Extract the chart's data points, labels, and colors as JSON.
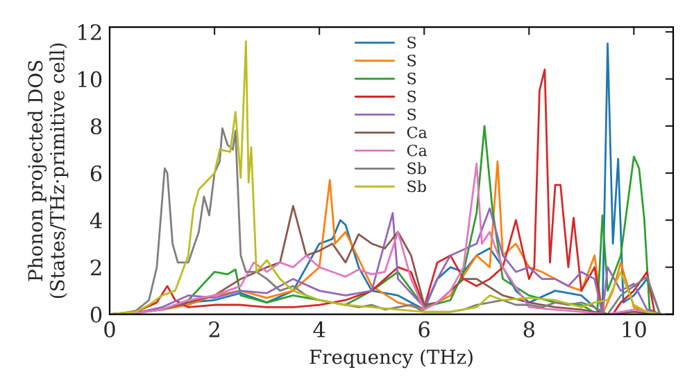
{
  "chart_data": {
    "type": "line",
    "xlabel": "Frequency (THz)",
    "ylabel": "Phonon projected DOS\n(States/THz·primitive cell)",
    "xlim": [
      0,
      10.75
    ],
    "ylim": [
      0,
      12.2
    ],
    "xticks": [
      0,
      2,
      4,
      6,
      8,
      10
    ],
    "yticks": [
      0,
      2,
      4,
      6,
      8,
      10,
      12
    ],
    "grid": false,
    "legend": "top",
    "marker": "none",
    "line_style": "solid",
    "series": [
      {
        "name": "S",
        "color": "#1f77b4",
        "x": [
          1.0,
          1.5,
          2.0,
          2.5,
          3.0,
          3.5,
          4.0,
          4.25,
          4.4,
          4.5,
          4.75,
          5.0,
          5.5,
          6.0,
          6.25,
          6.5,
          6.75,
          7.0,
          7.25,
          7.5,
          7.75,
          8.0,
          8.5,
          9.0,
          9.25,
          9.4,
          9.5,
          9.6,
          9.7,
          9.8,
          10.0,
          10.25,
          10.5
        ],
        "values": [
          0.2,
          0.5,
          0.6,
          0.9,
          0.5,
          1.0,
          3.0,
          3.2,
          4.0,
          3.8,
          2.0,
          1.0,
          0.8,
          0.2,
          1.5,
          2.0,
          1.8,
          2.5,
          2.8,
          2.0,
          1.0,
          0.5,
          1.0,
          0.8,
          0.3,
          0.0,
          11.5,
          3.0,
          6.6,
          0.5,
          0.8,
          1.5,
          0
        ]
      },
      {
        "name": "S",
        "color": "#ff7f0e",
        "x": [
          0,
          1.0,
          1.5,
          2.0,
          2.5,
          3.0,
          3.5,
          4.0,
          4.2,
          4.3,
          4.5,
          5.0,
          5.5,
          6.0,
          6.5,
          7.0,
          7.25,
          7.4,
          7.5,
          7.75,
          8.0,
          8.25,
          8.5,
          8.75,
          9.0,
          9.25,
          9.4,
          9.6,
          9.75,
          10.0,
          10.25,
          10.5
        ],
        "values": [
          0,
          0.2,
          0.4,
          0.8,
          1.0,
          0.7,
          1.0,
          2.0,
          5.7,
          3.0,
          3.5,
          1.2,
          0.5,
          0.2,
          0.8,
          2.5,
          2.0,
          6.5,
          2.5,
          3.0,
          2.0,
          1.8,
          1.5,
          1.2,
          1.0,
          2.5,
          0.0,
          1.0,
          2.2,
          0.3,
          0.1,
          0
        ]
      },
      {
        "name": "S",
        "color": "#2ca02c",
        "x": [
          1.0,
          1.5,
          1.75,
          2.0,
          2.25,
          2.4,
          2.5,
          3.0,
          3.5,
          4.0,
          4.5,
          5.0,
          5.5,
          6.0,
          6.5,
          6.75,
          7.0,
          7.15,
          7.3,
          7.5,
          8.0,
          8.5,
          9.0,
          9.3,
          9.4,
          9.5,
          9.75,
          10.0,
          10.1,
          10.2,
          10.3,
          10.5
        ],
        "values": [
          0.2,
          0.6,
          1.2,
          1.8,
          1.7,
          1.9,
          0.8,
          0.5,
          0.8,
          0.6,
          0.4,
          1.0,
          1.8,
          0.3,
          0.6,
          1.8,
          4.3,
          8.0,
          4.5,
          1.5,
          0.8,
          0.5,
          0.4,
          0.0,
          4.2,
          1.0,
          2.5,
          6.7,
          6.2,
          4.0,
          0.2,
          0
        ]
      },
      {
        "name": "S",
        "color": "#d62728",
        "x": [
          0,
          0.5,
          0.9,
          1.1,
          1.25,
          1.5,
          2.0,
          2.5,
          3.0,
          3.5,
          4.0,
          4.5,
          5.0,
          5.25,
          5.5,
          5.75,
          6.0,
          6.25,
          6.5,
          6.75,
          7.0,
          7.25,
          7.5,
          7.75,
          8.0,
          8.1,
          8.2,
          8.3,
          8.4,
          8.5,
          8.6,
          8.75,
          8.85,
          9.0,
          9.25,
          9.4,
          9.6,
          9.75,
          10.0,
          10.25,
          10.4
        ],
        "values": [
          0,
          0.1,
          0.5,
          1.2,
          0.6,
          0.3,
          0.4,
          0.4,
          0.3,
          0.3,
          0.4,
          0.6,
          1.0,
          1.5,
          2.0,
          1.8,
          0.3,
          2.2,
          2.5,
          1.5,
          1.2,
          1.5,
          2.0,
          4.0,
          1.5,
          2.0,
          9.5,
          10.4,
          2.2,
          5.5,
          5.5,
          2.0,
          4.1,
          1.0,
          2.0,
          0.0,
          0.0,
          0.5,
          1.0,
          1.8,
          0
        ]
      },
      {
        "name": "S",
        "color": "#9467bd",
        "x": [
          0,
          0.5,
          1.0,
          1.5,
          2.0,
          2.5,
          3.0,
          3.5,
          4.0,
          4.5,
          5.0,
          5.4,
          5.5,
          6.0,
          6.25,
          6.5,
          7.0,
          7.25,
          7.5,
          7.75,
          8.0,
          8.25,
          8.5,
          8.75,
          9.0,
          9.25,
          9.4,
          9.5,
          9.75,
          10.0,
          10.25,
          10.5
        ],
        "values": [
          0,
          0.05,
          0.3,
          0.8,
          0.7,
          1.0,
          0.9,
          1.5,
          1.0,
          0.8,
          1.0,
          4.3,
          1.5,
          0.3,
          1.5,
          2.5,
          3.0,
          4.5,
          2.5,
          1.8,
          2.0,
          1.5,
          1.5,
          1.2,
          1.8,
          1.5,
          0.0,
          2.0,
          1.0,
          1.3,
          0.2,
          0
        ]
      },
      {
        "name": "Ca",
        "color": "#8c564b",
        "x": [
          0,
          0.5,
          1.0,
          1.5,
          2.0,
          2.5,
          3.0,
          3.25,
          3.5,
          3.75,
          4.0,
          4.25,
          4.5,
          4.75,
          5.0,
          5.25,
          5.5,
          5.75,
          6.0,
          6.25,
          6.5,
          6.75,
          7.0,
          7.5,
          8.0,
          8.5,
          9.0,
          9.5,
          10.0,
          10.5
        ],
        "values": [
          0,
          0.05,
          0.2,
          0.5,
          0.8,
          1.5,
          2.0,
          2.2,
          4.6,
          2.5,
          2.7,
          3.0,
          2.2,
          3.4,
          3.0,
          2.8,
          3.5,
          2.5,
          0.4,
          0.5,
          1.0,
          1.5,
          1.5,
          0.8,
          0.5,
          0.3,
          0.2,
          0.0,
          0.1,
          0
        ]
      },
      {
        "name": "Ca",
        "color": "#e377c2",
        "x": [
          0,
          0.5,
          1.0,
          1.5,
          2.0,
          2.5,
          2.75,
          3.0,
          3.25,
          3.5,
          3.75,
          4.0,
          4.25,
          4.5,
          4.75,
          5.0,
          5.25,
          5.5,
          5.75,
          6.0,
          6.25,
          6.5,
          6.75,
          7.0,
          7.1,
          7.25,
          7.5,
          8.0,
          8.5,
          9.0,
          9.5,
          10.0,
          10.5
        ],
        "values": [
          0,
          0.05,
          0.2,
          0.6,
          0.8,
          1.2,
          2.2,
          1.8,
          2.2,
          2.0,
          2.5,
          2.0,
          1.8,
          1.6,
          1.9,
          1.7,
          1.8,
          3.5,
          1.5,
          0.2,
          0.5,
          1.0,
          2.0,
          6.4,
          3.0,
          3.5,
          2.0,
          0.3,
          0.2,
          0.1,
          0.0,
          0.2,
          0
        ]
      },
      {
        "name": "Sb",
        "color": "#7f7f7f",
        "x": [
          0,
          0.25,
          0.5,
          0.75,
          0.9,
          1.05,
          1.1,
          1.2,
          1.3,
          1.5,
          1.7,
          1.8,
          1.9,
          2.0,
          2.1,
          2.15,
          2.25,
          2.35,
          2.4,
          2.5,
          2.6,
          2.8,
          3.0,
          3.25,
          3.5,
          3.75,
          4.0,
          4.25,
          4.5,
          4.75,
          5.0,
          5.25,
          5.5,
          5.75,
          6.0,
          6.25,
          6.5,
          6.75,
          7.0,
          7.25,
          7.5,
          7.75,
          8.0,
          8.25,
          8.5,
          8.75,
          9.0,
          9.25,
          9.5,
          9.75,
          10.0,
          10.25,
          10.5
        ],
        "values": [
          0,
          0.05,
          0.15,
          0.6,
          2.0,
          6.2,
          6.0,
          3.0,
          2.2,
          2.2,
          3.5,
          5.0,
          4.2,
          6.0,
          6.5,
          7.9,
          7.2,
          7.0,
          7.8,
          2.5,
          1.8,
          1.8,
          1.5,
          1.0,
          1.2,
          0.8,
          0.6,
          0.5,
          0.4,
          0.3,
          0.4,
          0.2,
          0.3,
          0.4,
          0.1,
          0.1,
          0.1,
          0.2,
          0.4,
          0.5,
          0.6,
          0.4,
          0.4,
          0.3,
          0.5,
          0.4,
          0.5,
          0.3,
          0.0,
          0.8,
          1.2,
          1.6,
          0
        ]
      },
      {
        "name": "Sb",
        "color": "#bcbd22",
        "x": [
          0,
          0.5,
          0.75,
          1.0,
          1.25,
          1.5,
          1.6,
          1.7,
          2.0,
          2.1,
          2.3,
          2.4,
          2.5,
          2.6,
          2.65,
          2.7,
          2.8,
          3.0,
          3.25,
          3.5,
          3.75,
          4.0,
          4.5,
          5.0,
          5.5,
          6.0,
          6.5,
          7.0,
          7.25,
          7.5,
          8.0,
          8.5,
          9.0,
          9.25,
          9.5,
          9.75,
          10.0,
          10.25,
          10.5
        ],
        "values": [
          0,
          0.1,
          0.4,
          0.8,
          1.0,
          2.5,
          4.5,
          5.3,
          6.0,
          7.0,
          6.9,
          8.6,
          5.8,
          11.6,
          5.6,
          7.1,
          1.8,
          2.3,
          1.5,
          1.0,
          0.8,
          0.6,
          0.4,
          0.3,
          0.2,
          0.1,
          0.1,
          0.3,
          0.8,
          0.6,
          0.7,
          0.6,
          0.3,
          0.5,
          0.6,
          1.8,
          0.4,
          0.1,
          0
        ]
      }
    ]
  }
}
